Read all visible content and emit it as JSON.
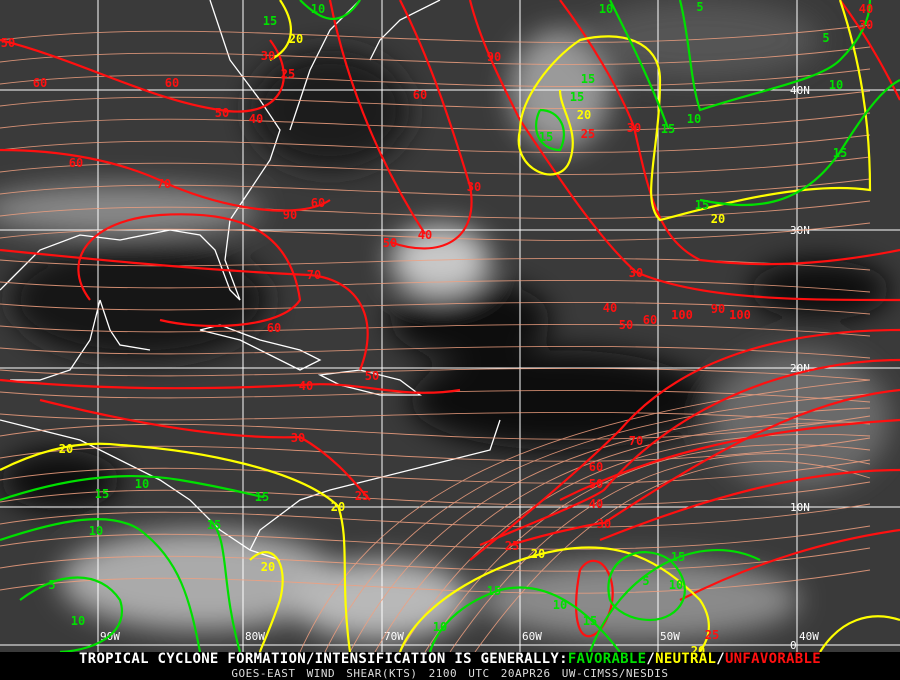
{
  "footer": {
    "headline_prefix": "TROPICAL CYCLONE FORMATION/INTENSIFICATION IS GENERALLY:",
    "favorable": "FAVORABLE",
    "neutral": "NEUTRAL",
    "unfavorable": "UNFAVORABLE",
    "sep": "/",
    "product": "GOES-EAST WIND SHEAR(KTS)",
    "time": "2100 UTC",
    "date": "20APR26",
    "source": "UW-CIMSS/NESDIS"
  },
  "colors": {
    "favorable": "#00e000",
    "neutral": "#ffff00",
    "unfavorable": "#ff1010",
    "streamlines": "#f0a080",
    "coastline": "#ffffff",
    "grid": "#ffffff"
  },
  "grid": {
    "lon_labels": [
      "90W",
      "80W",
      "70W",
      "60W",
      "50W",
      "40W"
    ],
    "lat_labels": [
      "40N",
      "30N",
      "20N",
      "10N",
      "0"
    ]
  },
  "contour_labels": {
    "red": [
      "50",
      "60",
      "60",
      "50",
      "40",
      "30",
      "25",
      "60",
      "70",
      "90",
      "60",
      "50",
      "40",
      "30",
      "90",
      "60",
      "30",
      "25",
      "70",
      "60",
      "40",
      "50",
      "30",
      "25",
      "30",
      "40",
      "50",
      "60",
      "100",
      "90",
      "100",
      "70",
      "60",
      "50",
      "40",
      "30",
      "25",
      "25",
      "40",
      "30"
    ],
    "yellow": [
      "20",
      "20",
      "20",
      "20",
      "20",
      "20",
      "20",
      "20"
    ],
    "green": [
      "15",
      "10",
      "15",
      "15",
      "15",
      "10",
      "15",
      "10",
      "15",
      "5",
      "5",
      "10",
      "15",
      "15",
      "10",
      "15",
      "10",
      "5",
      "10",
      "15",
      "15",
      "10",
      "15",
      "10",
      "5",
      "10",
      "15"
    ]
  }
}
